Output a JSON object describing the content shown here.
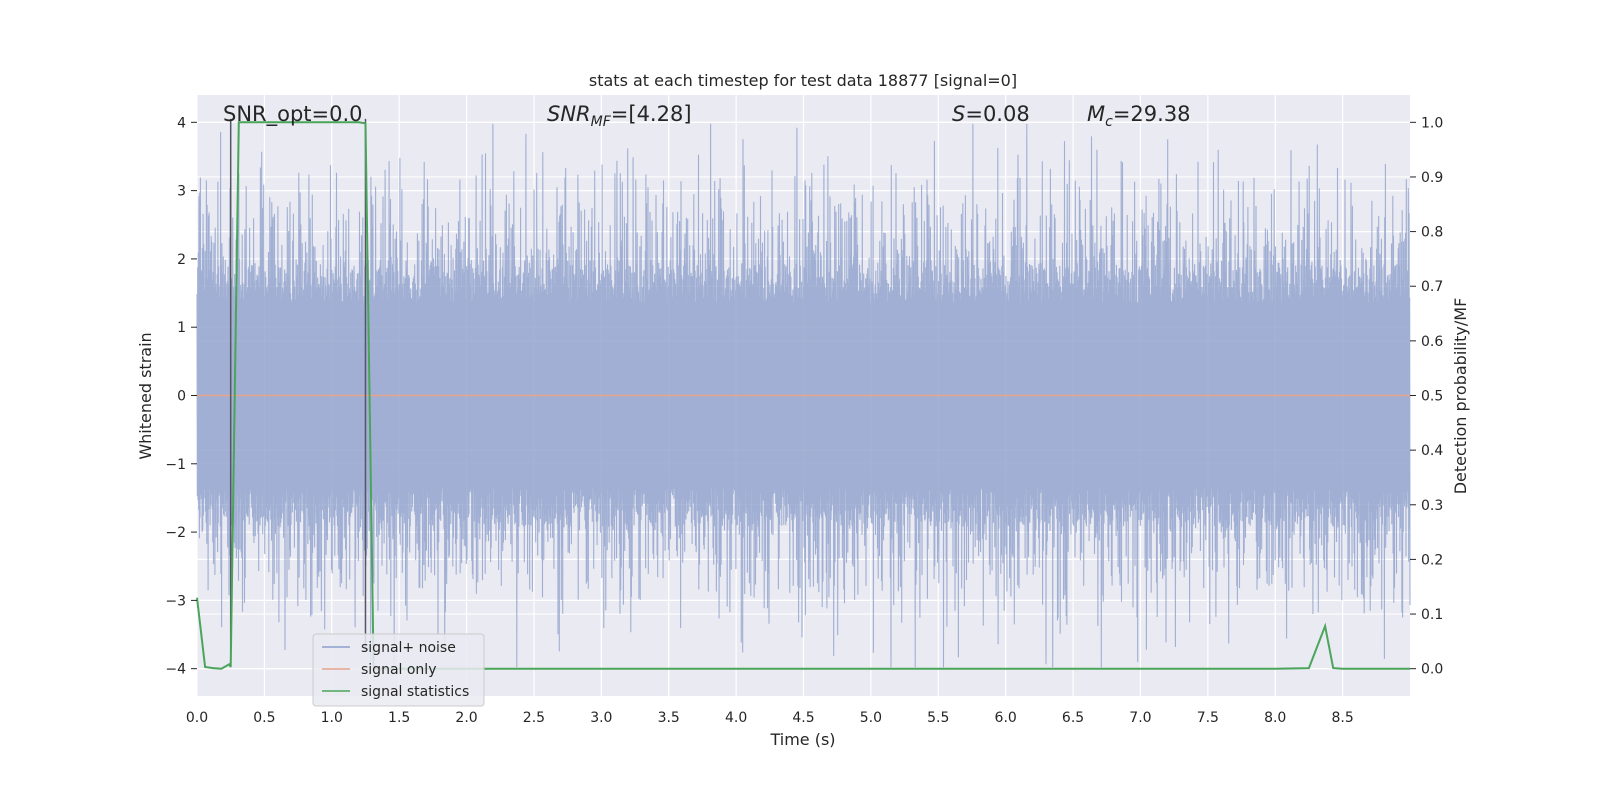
{
  "chart_data": {
    "type": "line",
    "title": "stats at each timestep for test data 18877 [signal=0]",
    "xlabel": "Time (s)",
    "ylabel": "Whitened strain",
    "y2label": "Detection probability/MF",
    "xlim": [
      0.0,
      9.0
    ],
    "ylim": [
      -4.4,
      4.4
    ],
    "y2lim": [
      -0.05,
      1.05
    ],
    "xticks": [
      "0.0",
      "0.5",
      "1.0",
      "1.5",
      "2.0",
      "2.5",
      "3.0",
      "3.5",
      "4.0",
      "4.5",
      "5.0",
      "5.5",
      "6.0",
      "6.5",
      "7.0",
      "7.5",
      "8.0",
      "8.5"
    ],
    "yticks": [
      "4",
      "3",
      "2",
      "1",
      "0",
      "−1",
      "−2",
      "−3",
      "−4"
    ],
    "y2ticks": [
      "1.0",
      "0.9",
      "0.8",
      "0.7",
      "0.6",
      "0.5",
      "0.4",
      "0.3",
      "0.2",
      "0.1",
      "0.0"
    ],
    "grid": true,
    "legend_position": "lower-left",
    "annotations": {
      "snr_opt": "SNR_opt=0.0",
      "snr_mf_main": "SNR",
      "snr_mf_sub": "MF",
      "snr_mf_value": "=[4.28]",
      "s_symbol": "S",
      "s_value": "=0.08",
      "mc_symbol": "M",
      "mc_sub": "c",
      "mc_value": "=29.38"
    },
    "series": [
      {
        "name": "signal+ noise",
        "color": "#8da0cb",
        "description_kind": "noise",
        "x_range": [
          0.0,
          9.0
        ],
        "amplitude_core": 1.6,
        "max_abs": 3.98
      },
      {
        "name": "signal only",
        "color": "#e8a48a",
        "x": [
          0.0,
          9.0
        ],
        "y": [
          0.0,
          0.0
        ]
      },
      {
        "name": "signal statistics",
        "color": "#4aa55a",
        "x": [
          0.0,
          0.06,
          0.12,
          0.18,
          0.24,
          0.25,
          0.31,
          0.37,
          0.5,
          1.0,
          1.2,
          1.25,
          1.31,
          1.37,
          1.5,
          2.0,
          8.0,
          8.25,
          8.37,
          8.43,
          8.5,
          9.0
        ],
        "y": [
          0.13,
          0.003,
          0.001,
          0.0,
          0.008,
          0.003,
          1.0,
          1.0,
          1.0,
          1.0,
          1.0,
          0.998,
          0.0,
          0.0,
          0.0,
          0.0,
          0.0,
          0.001,
          0.078,
          0.001,
          0.0,
          0.0
        ]
      }
    ],
    "window_markers": [
      0.25,
      1.25
    ]
  }
}
